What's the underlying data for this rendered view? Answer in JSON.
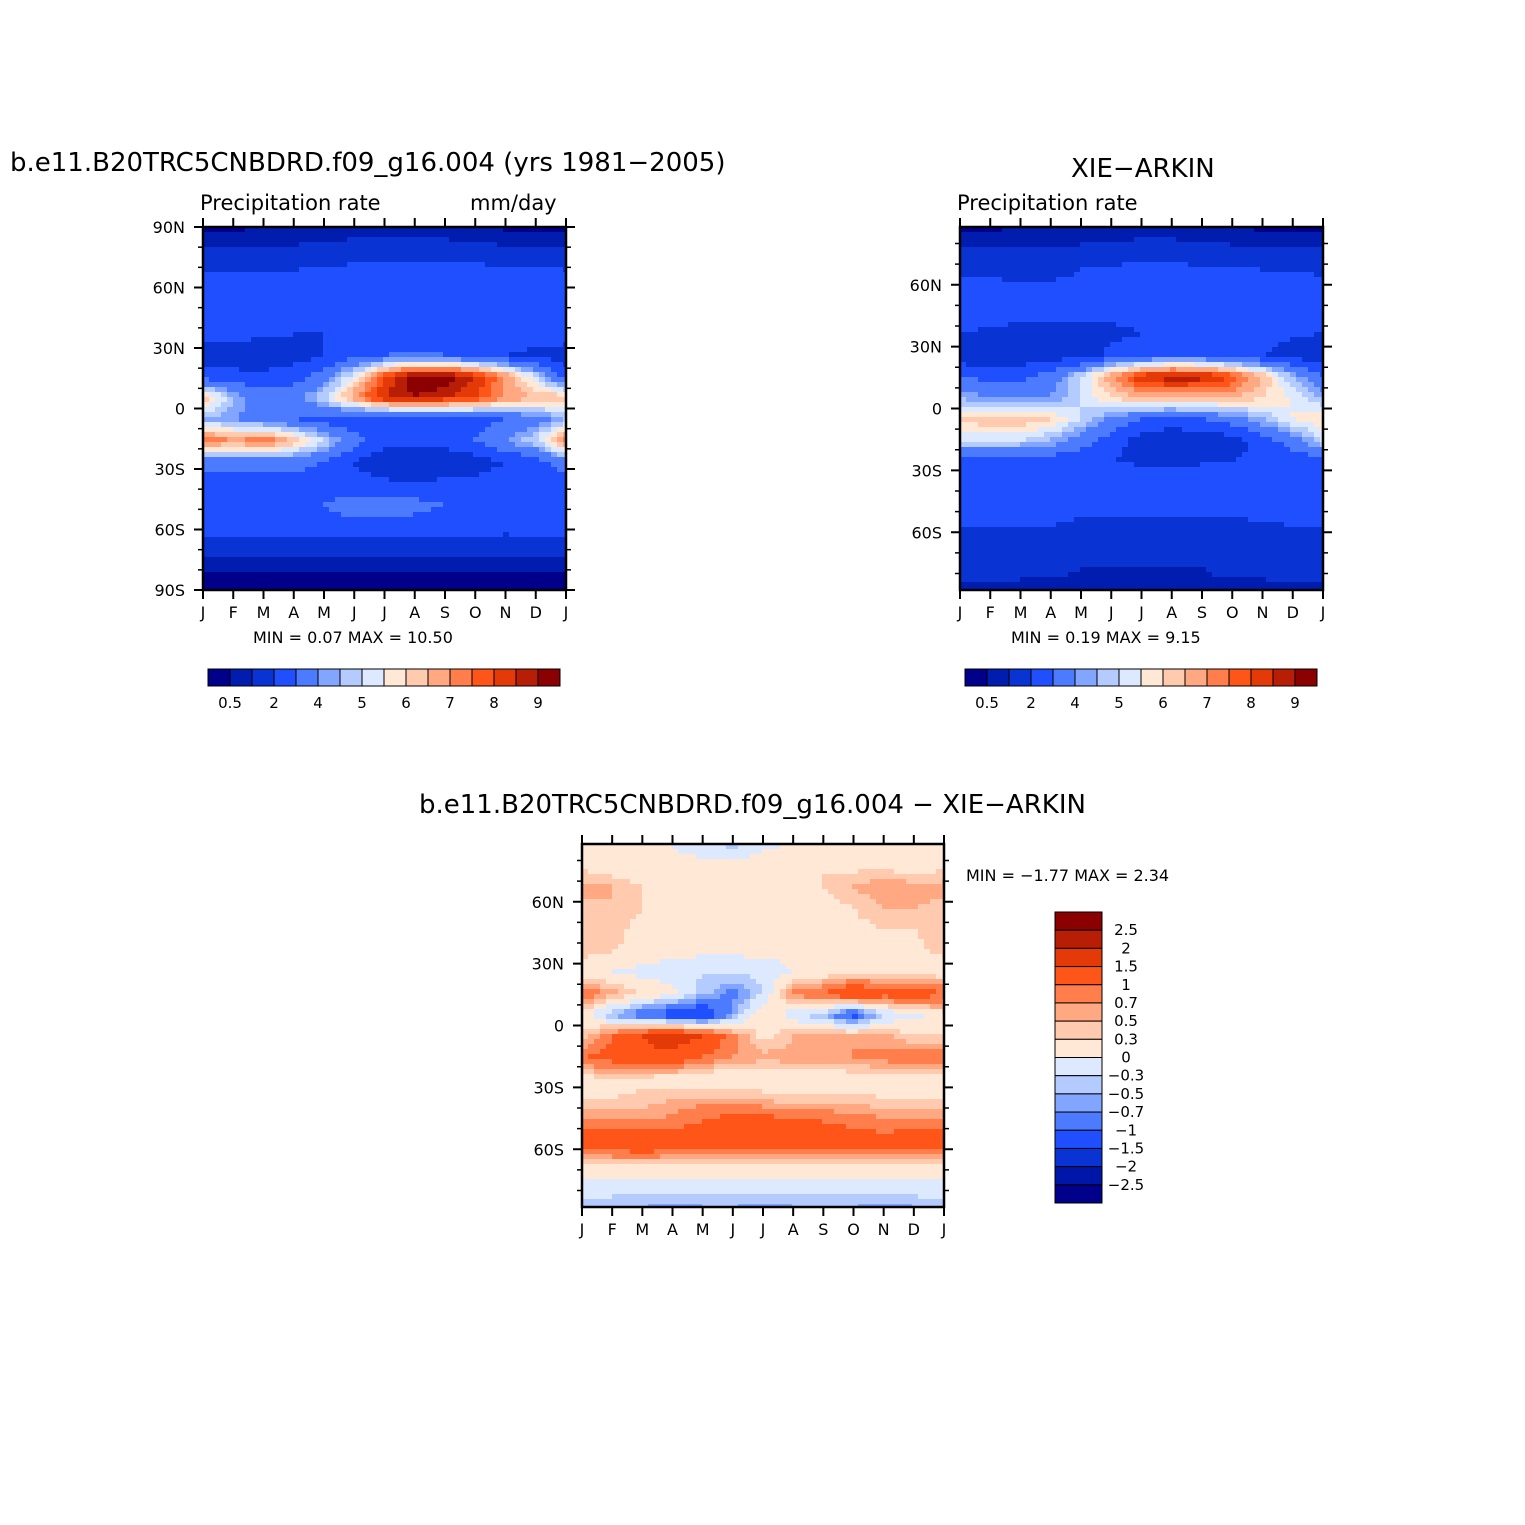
{
  "colors": {
    "precip_levels": [
      "#00008b",
      "#001db0",
      "#0a33d3",
      "#1f4fff",
      "#4d7bff",
      "#82a6ff",
      "#b3cbff",
      "#dde9ff",
      "#ffe8d6",
      "#ffcaae",
      "#ffa882",
      "#ff7e4b",
      "#ff5518",
      "#e33a08",
      "#b81e05",
      "#8b0000"
    ],
    "diff_levels": [
      "#00008b",
      "#0016a8",
      "#0a33d3",
      "#1f4fff",
      "#4d7bff",
      "#82a6ff",
      "#b3cbff",
      "#dde9ff",
      "#ffe8d6",
      "#ffcaae",
      "#ffa882",
      "#ff7e4b",
      "#ff5518",
      "#e33a08",
      "#b81e05",
      "#8b0000"
    ]
  },
  "panels": [
    {
      "title": "b.e11.B20TRC5CNBDRD.f09_g16.004 (yrs 1981−2005)",
      "left_label": "Precipitation  rate",
      "right_label": "mm/day",
      "stats": "MIN =    0.07  MAX =    10.50",
      "y_ticks": [
        "90N",
        "60N",
        "30N",
        "0",
        "30S",
        "60S",
        "90S"
      ],
      "x_ticks": [
        "J",
        "F",
        "M",
        "A",
        "M",
        "J",
        "J",
        "A",
        "S",
        "O",
        "N",
        "D",
        "J"
      ],
      "colorbar_labels": [
        "0.5",
        "2",
        "4",
        "5",
        "6",
        "7",
        "8",
        "9"
      ]
    },
    {
      "title": "XIE−ARKIN",
      "left_label": "Precipitation  rate",
      "right_label": "",
      "stats": "MIN =    0.19  MAX =    9.15",
      "y_ticks": [
        "60N",
        "30N",
        "0",
        "30S",
        "60S"
      ],
      "x_ticks": [
        "J",
        "F",
        "M",
        "A",
        "M",
        "J",
        "J",
        "A",
        "S",
        "O",
        "N",
        "D",
        "J"
      ],
      "colorbar_labels": [
        "0.5",
        "2",
        "4",
        "5",
        "6",
        "7",
        "8",
        "9"
      ]
    },
    {
      "title": "b.e11.B20TRC5CNBDRD.f09_g16.004  −  XIE−ARKIN",
      "stats": "MIN =   −1.77  MAX =    2.34",
      "y_ticks": [
        "60N",
        "30N",
        "0",
        "30S",
        "60S"
      ],
      "x_ticks": [
        "J",
        "F",
        "M",
        "A",
        "M",
        "J",
        "J",
        "A",
        "S",
        "O",
        "N",
        "D",
        "J"
      ],
      "colorbar_labels": [
        "2.5",
        "2",
        "1.5",
        "1",
        "0.7",
        "0.5",
        "0.3",
        "0",
        "−0.3",
        "−0.5",
        "−0.7",
        "−1",
        "−1.5",
        "−2",
        "−2.5"
      ]
    }
  ],
  "chart_data": [
    {
      "type": "heatmap",
      "title": "b.e11.B20TRC5CNBDRD.f09_g16.004 (yrs 1981−2005)",
      "xlabel": "",
      "ylabel": "",
      "x": [
        "J",
        "F",
        "M",
        "A",
        "M",
        "J",
        "J",
        "A",
        "S",
        "O",
        "N",
        "D",
        "J"
      ],
      "ylim": [
        -90,
        90
      ],
      "value_range": [
        0.07,
        10.5
      ],
      "units": "mm/day",
      "rows_lat": [
        85,
        75,
        65,
        55,
        45,
        35,
        25,
        15,
        5,
        -5,
        -15,
        -25,
        -35,
        -45,
        -55,
        -65,
        -75,
        -85
      ],
      "values": [
        [
          0.4,
          0.4,
          0.5,
          0.5,
          0.6,
          0.6,
          0.7,
          0.7,
          0.6,
          0.5,
          0.4,
          0.4,
          0.4
        ],
        [
          1.0,
          1.0,
          1.0,
          1.1,
          1.2,
          1.3,
          1.4,
          1.4,
          1.3,
          1.2,
          1.1,
          1.0,
          1.0
        ],
        [
          2.0,
          1.9,
          1.9,
          2.0,
          2.1,
          2.3,
          2.4,
          2.5,
          2.4,
          2.3,
          2.2,
          2.1,
          2.0
        ],
        [
          2.8,
          2.6,
          2.5,
          2.5,
          2.4,
          2.4,
          2.5,
          2.7,
          2.9,
          3.0,
          3.0,
          2.9,
          2.8
        ],
        [
          2.9,
          2.7,
          2.5,
          2.4,
          2.2,
          2.0,
          2.0,
          2.2,
          2.5,
          2.8,
          3.0,
          3.0,
          2.9
        ],
        [
          2.5,
          2.3,
          2.2,
          2.0,
          2.0,
          2.0,
          2.2,
          2.3,
          2.5,
          2.6,
          2.6,
          2.5,
          2.5
        ],
        [
          1.5,
          1.4,
          1.3,
          1.5,
          2.0,
          2.5,
          3.0,
          3.2,
          3.0,
          2.5,
          2.0,
          1.7,
          1.5
        ],
        [
          2.5,
          2.3,
          2.3,
          2.6,
          3.5,
          5.5,
          8.0,
          9.5,
          9.5,
          8.5,
          7.0,
          5.0,
          2.5
        ],
        [
          6.5,
          4.5,
          3.5,
          3.5,
          5.0,
          7.0,
          8.5,
          9.0,
          8.5,
          8.0,
          7.0,
          6.5,
          6.5
        ],
        [
          4.5,
          4.0,
          3.5,
          3.0,
          2.5,
          2.0,
          2.0,
          2.0,
          2.2,
          2.5,
          3.0,
          3.5,
          4.5
        ],
        [
          7.5,
          7.0,
          7.5,
          6.5,
          5.0,
          3.5,
          2.5,
          2.5,
          2.5,
          3.0,
          4.0,
          5.0,
          7.5
        ],
        [
          3.5,
          3.5,
          3.5,
          3.5,
          3.0,
          2.0,
          1.2,
          1.0,
          1.2,
          1.5,
          2.0,
          2.5,
          3.5
        ],
        [
          2.5,
          2.5,
          2.5,
          2.5,
          2.4,
          2.3,
          2.2,
          2.1,
          2.2,
          2.3,
          2.5,
          2.5,
          2.5
        ],
        [
          2.2,
          2.3,
          2.5,
          2.7,
          3.0,
          3.5,
          3.6,
          3.3,
          3.0,
          2.6,
          2.4,
          2.2,
          2.2
        ],
        [
          2.4,
          2.5,
          2.5,
          2.6,
          2.7,
          2.7,
          2.7,
          2.6,
          2.6,
          2.5,
          2.4,
          2.4,
          2.4
        ],
        [
          1.5,
          1.4,
          1.4,
          1.4,
          1.5,
          1.5,
          1.5,
          1.5,
          1.4,
          1.4,
          1.4,
          1.5,
          1.5
        ],
        [
          0.6,
          0.6,
          0.6,
          0.6,
          0.6,
          0.6,
          0.6,
          0.6,
          0.6,
          0.6,
          0.6,
          0.6,
          0.6
        ],
        [
          0.2,
          0.2,
          0.2,
          0.2,
          0.2,
          0.2,
          0.2,
          0.2,
          0.2,
          0.2,
          0.2,
          0.2,
          0.2
        ]
      ]
    },
    {
      "type": "heatmap",
      "title": "XIE−ARKIN",
      "xlabel": "",
      "ylabel": "",
      "x": [
        "J",
        "F",
        "M",
        "A",
        "M",
        "J",
        "J",
        "A",
        "S",
        "O",
        "N",
        "D",
        "J"
      ],
      "ylim": [
        -88,
        88
      ],
      "value_range": [
        0.19,
        9.15
      ],
      "rows_lat": [
        83,
        73,
        63,
        53,
        43,
        33,
        23,
        13,
        3,
        -7,
        -17,
        -27,
        -37,
        -47,
        -57,
        -67,
        -77,
        -85
      ],
      "values": [
        [
          0.3,
          0.4,
          0.5,
          0.5,
          0.6,
          0.6,
          0.6,
          0.6,
          0.6,
          0.5,
          0.4,
          0.3,
          0.3
        ],
        [
          1.0,
          1.0,
          1.0,
          1.0,
          1.1,
          1.2,
          1.3,
          1.3,
          1.2,
          1.1,
          1.0,
          1.0,
          1.0
        ],
        [
          1.8,
          1.7,
          1.7,
          1.8,
          2.0,
          2.2,
          2.3,
          2.3,
          2.2,
          2.1,
          2.0,
          1.9,
          1.8
        ],
        [
          2.5,
          2.4,
          2.3,
          2.2,
          2.2,
          2.2,
          2.3,
          2.5,
          2.7,
          2.8,
          2.8,
          2.7,
          2.5
        ],
        [
          2.6,
          2.5,
          2.4,
          2.3,
          2.2,
          2.2,
          2.2,
          2.3,
          2.5,
          2.7,
          2.8,
          2.8,
          2.6
        ],
        [
          2.0,
          1.8,
          1.6,
          1.6,
          1.7,
          1.8,
          2.0,
          2.2,
          2.4,
          2.4,
          2.3,
          2.1,
          2.0
        ],
        [
          1.3,
          1.2,
          1.2,
          1.3,
          1.6,
          2.2,
          2.7,
          3.0,
          2.8,
          2.4,
          2.0,
          1.6,
          1.3
        ],
        [
          3.0,
          2.7,
          2.8,
          3.5,
          5.0,
          7.0,
          8.5,
          9.0,
          8.8,
          8.0,
          6.5,
          4.5,
          3.0
        ],
        [
          4.5,
          4.0,
          3.8,
          4.0,
          5.0,
          6.0,
          6.5,
          6.5,
          6.5,
          6.5,
          6.0,
          5.5,
          4.5
        ],
        [
          6.0,
          6.5,
          6.5,
          6.0,
          5.0,
          3.8,
          3.0,
          2.8,
          3.0,
          3.5,
          4.5,
          5.5,
          6.0
        ],
        [
          5.0,
          5.0,
          5.0,
          4.5,
          3.5,
          2.5,
          1.5,
          1.0,
          1.2,
          1.5,
          2.5,
          3.5,
          5.0
        ],
        [
          2.4,
          2.4,
          2.4,
          2.3,
          2.2,
          2.0,
          1.8,
          1.8,
          1.9,
          2.0,
          2.2,
          2.3,
          2.4
        ],
        [
          2.4,
          2.4,
          2.5,
          2.6,
          2.9,
          3.0,
          2.9,
          2.8,
          2.7,
          2.6,
          2.5,
          2.4,
          2.4
        ],
        [
          2.3,
          2.3,
          2.3,
          2.3,
          2.4,
          2.5,
          2.5,
          2.5,
          2.4,
          2.4,
          2.3,
          2.3,
          2.3
        ],
        [
          2.0,
          2.0,
          2.0,
          2.0,
          1.8,
          1.7,
          1.7,
          1.7,
          1.8,
          1.8,
          1.9,
          2.0,
          2.0
        ],
        [
          1.6,
          1.6,
          1.5,
          1.4,
          1.4,
          1.4,
          1.4,
          1.4,
          1.4,
          1.4,
          1.5,
          1.6,
          1.6
        ],
        [
          1.2,
          1.2,
          1.1,
          1.1,
          1.0,
          1.0,
          1.0,
          1.0,
          1.0,
          1.1,
          1.1,
          1.2,
          1.2
        ],
        [
          0.9,
          0.9,
          0.9,
          0.9,
          0.9,
          0.9,
          0.9,
          0.9,
          0.9,
          0.9,
          0.9,
          0.9,
          0.9
        ]
      ]
    },
    {
      "type": "heatmap",
      "title": "b.e11.B20TRC5CNBDRD.f09_g16.004  −  XIE−ARKIN",
      "xlabel": "",
      "ylabel": "",
      "x": [
        "J",
        "F",
        "M",
        "A",
        "M",
        "J",
        "J",
        "A",
        "S",
        "O",
        "N",
        "D",
        "J"
      ],
      "ylim": [
        -88,
        88
      ],
      "value_range": [
        -1.77,
        2.34
      ],
      "rows_lat": [
        83,
        73,
        63,
        53,
        43,
        33,
        23,
        13,
        3,
        -7,
        -17,
        -27,
        -37,
        -47,
        -57,
        -67,
        -77,
        -85
      ],
      "values": [
        [
          0.1,
          0.1,
          0.0,
          0.0,
          -0.2,
          -0.4,
          -0.1,
          0.0,
          0.0,
          0.0,
          0.1,
          0.1,
          0.1
        ],
        [
          0.2,
          0.1,
          0.1,
          0.1,
          0.1,
          0.1,
          0.2,
          0.3,
          0.3,
          0.2,
          0.2,
          0.1,
          0.2
        ],
        [
          0.6,
          0.5,
          0.3,
          0.2,
          0.2,
          0.2,
          0.2,
          0.2,
          0.3,
          0.5,
          0.7,
          0.6,
          0.6
        ],
        [
          0.4,
          0.5,
          0.3,
          0.2,
          0.1,
          0.1,
          0.1,
          0.1,
          0.2,
          0.3,
          0.5,
          0.5,
          0.4
        ],
        [
          0.5,
          0.4,
          0.2,
          0.1,
          0.0,
          0.0,
          0.0,
          0.1,
          0.1,
          0.2,
          0.3,
          0.3,
          0.5
        ],
        [
          0.4,
          0.3,
          0.2,
          0.1,
          0.1,
          0.1,
          0.1,
          0.1,
          0.2,
          0.2,
          0.2,
          0.2,
          0.4
        ],
        [
          0.1,
          0.0,
          -0.1,
          -0.2,
          -0.3,
          -0.3,
          -0.2,
          0.0,
          0.1,
          0.2,
          0.2,
          0.1,
          0.1
        ],
        [
          1.0,
          0.6,
          0.3,
          0.1,
          -0.4,
          -0.8,
          -0.3,
          0.8,
          1.0,
          1.5,
          1.2,
          1.4,
          1.0
        ],
        [
          0.2,
          -0.5,
          -1.0,
          -1.3,
          -1.5,
          -0.6,
          0.3,
          -0.2,
          -0.5,
          -1.2,
          -0.3,
          -0.1,
          0.2
        ],
        [
          0.3,
          1.0,
          1.5,
          1.8,
          1.5,
          0.8,
          0.2,
          0.5,
          0.6,
          0.7,
          0.6,
          0.3,
          0.3
        ],
        [
          1.0,
          1.2,
          1.4,
          1.3,
          1.0,
          0.7,
          0.6,
          0.6,
          0.6,
          0.7,
          0.8,
          0.9,
          1.0
        ],
        [
          0.2,
          0.2,
          0.2,
          0.1,
          0.0,
          0.0,
          0.0,
          0.1,
          0.1,
          0.1,
          0.2,
          0.2,
          0.2
        ],
        [
          0.3,
          0.3,
          0.4,
          0.5,
          0.6,
          0.6,
          0.5,
          0.4,
          0.4,
          0.4,
          0.3,
          0.3,
          0.3
        ],
        [
          0.8,
          0.8,
          0.7,
          0.8,
          1.0,
          1.2,
          1.2,
          1.1,
          1.0,
          0.9,
          0.8,
          0.8,
          0.8
        ],
        [
          1.3,
          1.4,
          1.5,
          1.5,
          1.4,
          1.4,
          1.4,
          1.3,
          1.3,
          1.2,
          1.2,
          1.3,
          1.3
        ],
        [
          0.3,
          0.3,
          0.3,
          0.2,
          0.2,
          0.2,
          0.2,
          0.2,
          0.2,
          0.2,
          0.2,
          0.3,
          0.3
        ],
        [
          -0.1,
          -0.1,
          -0.1,
          -0.1,
          -0.1,
          -0.1,
          -0.1,
          -0.1,
          -0.1,
          -0.1,
          -0.1,
          -0.1,
          -0.1
        ],
        [
          -0.4,
          -0.5,
          -0.5,
          -0.6,
          -0.5,
          -0.5,
          -0.6,
          -0.5,
          -0.5,
          -0.5,
          -0.6,
          -0.5,
          -0.4
        ]
      ]
    }
  ]
}
